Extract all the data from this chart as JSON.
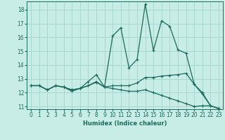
{
  "xlabel": "Humidex (Indice chaleur)",
  "background_color": "#c8ece6",
  "grid_color": "#a8d8d0",
  "line_color": "#1a6b5a",
  "xlim": [
    -0.5,
    23.5
  ],
  "ylim": [
    10.8,
    18.6
  ],
  "yticks": [
    11,
    12,
    13,
    14,
    15,
    16,
    17,
    18
  ],
  "xticks": [
    0,
    1,
    2,
    3,
    4,
    5,
    6,
    7,
    8,
    9,
    10,
    11,
    12,
    13,
    14,
    15,
    16,
    17,
    18,
    19,
    20,
    21,
    22,
    23
  ],
  "series": [
    [
      12.5,
      12.5,
      12.2,
      12.5,
      12.4,
      12.1,
      12.3,
      12.8,
      13.3,
      12.4,
      16.1,
      16.7,
      13.8,
      14.4,
      18.4,
      15.05,
      17.2,
      16.8,
      15.1,
      14.85,
      12.6,
      11.9,
      11.05,
      10.85
    ],
    [
      12.5,
      12.5,
      12.2,
      12.5,
      12.4,
      12.2,
      12.3,
      12.5,
      12.8,
      12.4,
      12.5,
      12.5,
      12.5,
      12.7,
      13.1,
      13.1,
      13.2,
      13.25,
      13.3,
      13.4,
      12.6,
      12.0,
      11.05,
      10.85
    ],
    [
      12.5,
      12.5,
      12.2,
      12.5,
      12.4,
      12.2,
      12.3,
      12.5,
      12.75,
      12.4,
      12.3,
      12.2,
      12.1,
      12.1,
      12.2,
      12.0,
      11.8,
      11.6,
      11.4,
      11.2,
      11.0,
      11.05,
      11.05,
      10.85
    ]
  ]
}
